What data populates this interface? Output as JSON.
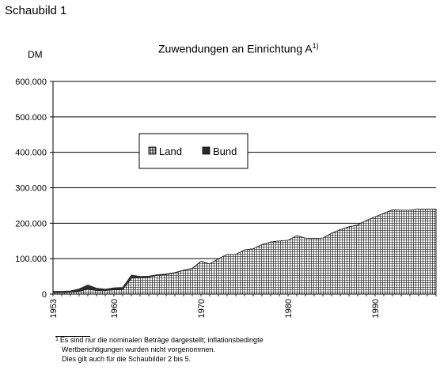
{
  "figure_label": "Schaubild 1",
  "chart_data": {
    "type": "area",
    "title": "Zuwendungen an Einrichtung  A",
    "title_superscript": "1)",
    "ylabel": "DM",
    "xlabel": "",
    "ylim": [
      0,
      600000
    ],
    "y_ticks": [
      "0",
      "100.000",
      "200.000",
      "300.000",
      "400.000",
      "500.000",
      "600.000"
    ],
    "y_tick_values": [
      0,
      100000,
      200000,
      300000,
      400000,
      500000,
      600000
    ],
    "x_ticks": [
      "1953",
      "1960",
      "1970",
      "1980",
      "1990"
    ],
    "x_tick_values": [
      1953,
      1960,
      1970,
      1980,
      1990
    ],
    "xlim": [
      1953,
      1997
    ],
    "grid": true,
    "stacked": true,
    "legend_position": "center-left",
    "x": [
      1953,
      1954,
      1955,
      1956,
      1957,
      1958,
      1959,
      1960,
      1961,
      1962,
      1963,
      1964,
      1965,
      1966,
      1967,
      1968,
      1969,
      1970,
      1971,
      1972,
      1973,
      1974,
      1975,
      1976,
      1977,
      1978,
      1979,
      1980,
      1981,
      1982,
      1983,
      1984,
      1985,
      1986,
      1987,
      1988,
      1989,
      1990,
      1991,
      1992,
      1993,
      1994,
      1995,
      1996,
      1997
    ],
    "series": [
      {
        "name": "Land",
        "pattern": "grid",
        "values": [
          4000,
          4000,
          5000,
          8000,
          14000,
          10000,
          10000,
          12000,
          13000,
          45000,
          46000,
          48000,
          53000,
          55000,
          60000,
          67000,
          72000,
          93000,
          85000,
          100000,
          112000,
          112000,
          125000,
          128000,
          140000,
          147000,
          150000,
          152000,
          165000,
          158000,
          157000,
          158000,
          172000,
          182000,
          190000,
          195000,
          208000,
          218000,
          228000,
          238000,
          237000,
          237000,
          240000,
          240000,
          240000
        ]
      },
      {
        "name": "Bund",
        "pattern": "solid",
        "values": [
          4000,
          4000,
          4000,
          7000,
          12000,
          7000,
          4000,
          6000,
          6000,
          9000,
          4000,
          3000,
          2000,
          2000,
          1000,
          1000,
          1000,
          0,
          0,
          0,
          0,
          0,
          0,
          0,
          0,
          0,
          0,
          0,
          0,
          0,
          0,
          0,
          0,
          0,
          0,
          0,
          0,
          0,
          0,
          0,
          0,
          0,
          0,
          0,
          0
        ]
      }
    ],
    "colors": {
      "bund": "#2a2a2a",
      "land_grid": "#000000",
      "land_bg": "#ffffff"
    }
  },
  "footnote": {
    "mark": "1",
    "lines": [
      "Es sind nur die nominalen Beträge dargestellt; inflationsbedingte",
      "Wertberichtigungen wurden nicht vorgenommen.",
      "Dies gilt auch für die Schaubilder 2 bis 5."
    ]
  }
}
